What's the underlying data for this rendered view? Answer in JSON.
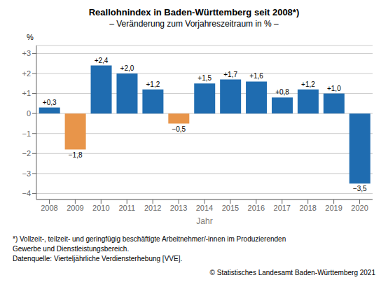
{
  "chart_data": {
    "type": "bar",
    "title": "Reallohnindex in Baden-Württemberg seit 2008*)",
    "subtitle": "– Veränderung zum Vorjahreszeitraum in % –",
    "x_label": "Jahr",
    "y_label": "%",
    "categories": [
      "2008",
      "2009",
      "2010",
      "2011",
      "2012",
      "2013",
      "2014",
      "2015",
      "2016",
      "2017",
      "2018",
      "2019",
      "2020"
    ],
    "values": [
      0.3,
      -1.8,
      2.4,
      2.0,
      1.2,
      -0.5,
      1.5,
      1.7,
      1.6,
      0.8,
      1.2,
      1.0,
      -3.5
    ],
    "value_labels": [
      "+0,3",
      "−1,8",
      "+2,4",
      "+2,0",
      "+1,2",
      "−0,5",
      "+1,5",
      "+1,7",
      "+1,6",
      "+0,8",
      "+1,2",
      "+1,0",
      "−3,5"
    ],
    "data_labels": true,
    "colors": [
      "#1f6cb0",
      "#e8954a",
      "#1f6cb0",
      "#1f6cb0",
      "#1f6cb0",
      "#e8954a",
      "#1f6cb0",
      "#1f6cb0",
      "#1f6cb0",
      "#1f6cb0",
      "#1f6cb0",
      "#1f6cb0",
      "#1f6cb0"
    ],
    "ylim": [
      -4.3,
      3.4
    ],
    "yticks": [
      {
        "value": -4,
        "label": "−4"
      },
      {
        "value": -3,
        "label": "−3"
      },
      {
        "value": -2,
        "label": "−2"
      },
      {
        "value": -1,
        "label": "−1"
      },
      0,
      {
        "value": 1,
        "label": "+1"
      },
      {
        "value": 2,
        "label": "+2"
      },
      {
        "value": 3,
        "label": "+3"
      }
    ],
    "grid": true,
    "annotations": [
      "*) Vollzeit-, teilzeit- und geringfügig beschäftigte Arbeitnehmer/-innen im Produzierenden",
      "Gewerbe und Dienstleistungsbereich.",
      "Datenquelle: Vierteljährliche Verdiensterhebung [VVE].",
      "© Statistisches Landesamt Baden-Württemberg 2021"
    ]
  }
}
